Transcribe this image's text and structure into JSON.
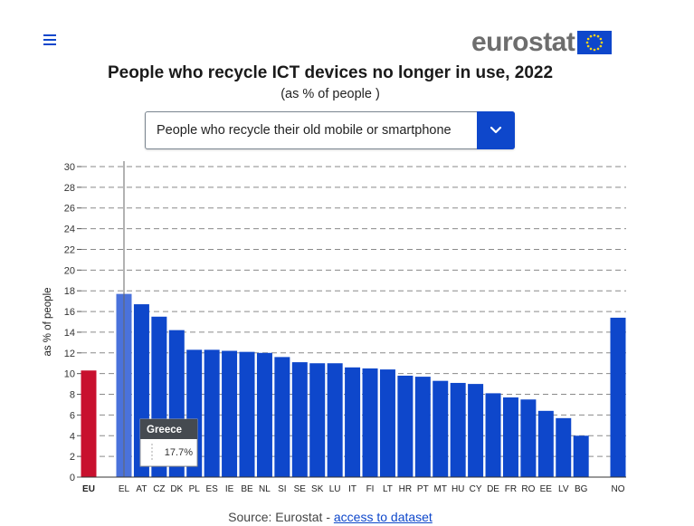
{
  "header": {
    "menu_icon": "hamburger-menu-icon",
    "logo_text": "eurostat",
    "logo_flag_icon": "eu-flag-icon"
  },
  "title": "People who recycle ICT devices no longer in use, 2022",
  "subtitle": "(as % of people )",
  "dropdown": {
    "selected": "People who recycle their old mobile or smartphone",
    "icon": "chevron-down-icon"
  },
  "tooltip": {
    "title": "Greece",
    "value": "17.7%"
  },
  "source": {
    "prefix": "Source: Eurostat - ",
    "link": "access to dataset"
  },
  "colors": {
    "bar": "#0e47cb",
    "eu_bar": "#c8102e",
    "highlight_bar": "#4a72db",
    "tooltip_header": "#454a50"
  },
  "chart_data": {
    "type": "bar",
    "ylabel": "as % of people",
    "xlabel": "",
    "ylim": [
      0,
      30
    ],
    "yticks": [
      0,
      2,
      4,
      6,
      8,
      10,
      12,
      14,
      16,
      18,
      20,
      22,
      24,
      26,
      28,
      30
    ],
    "grid": "dashed horizontal",
    "categories": [
      "EU",
      "EL",
      "AT",
      "CZ",
      "DK",
      "PL",
      "ES",
      "IE",
      "BE",
      "NL",
      "SI",
      "SE",
      "SK",
      "LU",
      "IT",
      "FI",
      "LT",
      "HR",
      "PT",
      "MT",
      "HU",
      "CY",
      "DE",
      "FR",
      "RO",
      "EE",
      "LV",
      "BG",
      "NO"
    ],
    "values": [
      10.3,
      17.7,
      16.7,
      15.5,
      14.2,
      12.3,
      12.3,
      12.2,
      12.1,
      12.0,
      11.6,
      11.1,
      11.0,
      11.0,
      10.6,
      10.5,
      10.4,
      9.8,
      9.7,
      9.3,
      9.1,
      9.0,
      8.1,
      7.7,
      7.5,
      6.4,
      5.7,
      4.0,
      15.4
    ],
    "highlighted": "EL"
  }
}
